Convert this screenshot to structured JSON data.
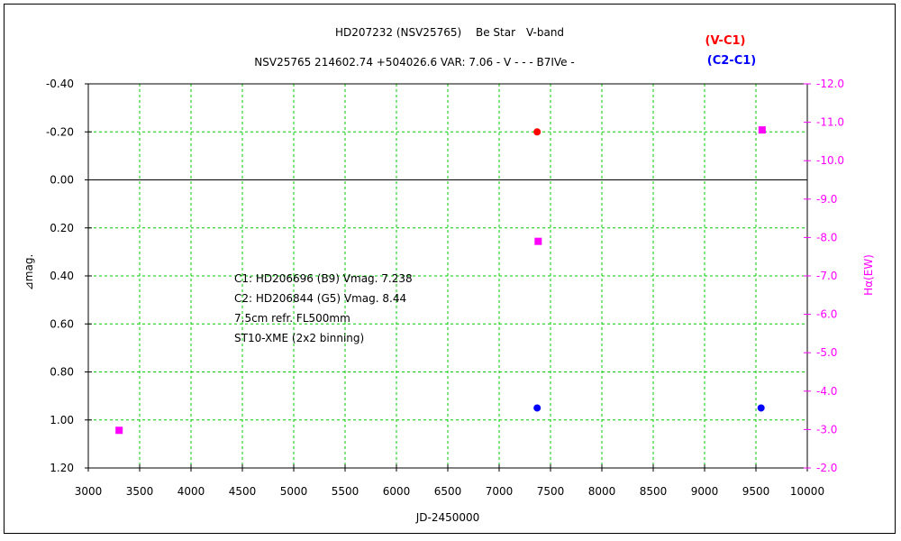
{
  "chart_data": {
    "type": "scatter",
    "title": "HD207232 (NSV25765)　 Be Star　V-band",
    "subtitle": "NSV25765 214602.74 +504026.6 VAR: 7.06 - V - - - B7IVe -",
    "xlabel": "JD-2450000",
    "ylabel_left": "⊿mag.",
    "ylabel_right": "Hα(EW)",
    "xlim": [
      3000,
      10000
    ],
    "ylim_left": [
      1.2,
      -0.4
    ],
    "ylim_right": [
      -2.0,
      -12.0
    ],
    "x_ticks": [
      "3000",
      "3500",
      "4000",
      "4500",
      "5000",
      "5500",
      "6000",
      "6500",
      "7000",
      "7500",
      "8000",
      "8500",
      "9000",
      "9500",
      "10000"
    ],
    "y_ticks_left": [
      "-0.40",
      "-0.20",
      "0.00",
      "0.20",
      "0.40",
      "0.60",
      "0.80",
      "1.00",
      "1.20"
    ],
    "y_ticks_right": [
      "-12.0",
      "-11.0",
      "-10.0",
      "-9.0",
      "-8.0",
      "-7.0",
      "-6.0",
      "-5.0",
      "-4.0",
      "-3.0",
      "-2.0"
    ],
    "grid": true,
    "legend": [
      {
        "label": "(V-C1)",
        "color": "#ff0000"
      },
      {
        "label": "(C2-C1)",
        "color": "#0000ff"
      }
    ],
    "series": [
      {
        "name": "(V-C1)",
        "axis": "left",
        "marker": "circle",
        "color": "#ff0000",
        "points": [
          [
            7370,
            -0.2
          ]
        ]
      },
      {
        "name": "(C2-C1)",
        "axis": "left",
        "marker": "circle",
        "color": "#0000ff",
        "points": [
          [
            7370,
            0.95
          ],
          [
            9550,
            0.95
          ]
        ]
      },
      {
        "axis": "right",
        "marker": "square",
        "color": "#ff00ff",
        "points": [
          [
            3300,
            -2.98
          ],
          [
            7380,
            -7.9
          ],
          [
            9560,
            -10.8
          ]
        ]
      }
    ],
    "annotations": [
      "C1: HD206696 (B9) Vmag. 7.238",
      "C2: HD206844 (G5) Vmag. 8.44",
      "7.5cm refr. FL500mm",
      "ST10-XME (2x2 binning)"
    ],
    "colors": {
      "grid": "#00cc00",
      "right_axis": "#ff00ff"
    }
  }
}
